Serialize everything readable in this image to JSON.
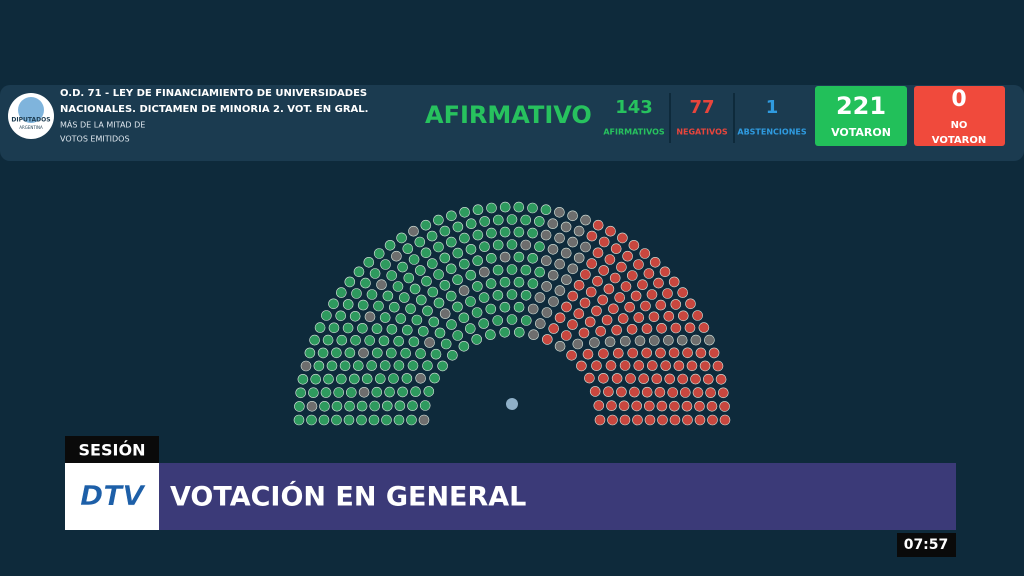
{
  "header": {
    "logo": {
      "line1": "DIPUTADOS",
      "line2": "ARGENTINA"
    },
    "title_lines": [
      "O.D. 71 - LEY DE FINANCIAMIENTO DE UNIVERSIDADES",
      "NACIONALES. DICTAMEN DE MINORIA 2. VOT. EN GRAL."
    ],
    "subtitle_lines": [
      "MÁS DE LA MITAD DE",
      "VOTOS EMITIDOS"
    ],
    "result": "AFIRMATIVO",
    "counts": [
      {
        "value": 143,
        "label": "AFIRMATIVOS"
      },
      {
        "value": 77,
        "label": "NEGATIVOS"
      },
      {
        "value": 1,
        "label": "ABSTENCIONES"
      }
    ],
    "boxes": [
      {
        "value": 221,
        "label": "VOTARON"
      },
      {
        "value": 0,
        "label_lines": [
          "NO",
          "VOTARON"
        ]
      }
    ]
  },
  "lower_third": {
    "tag": "SESIÓN",
    "logo": "DTV",
    "headline": "VOTACIÓN EN GENERAL",
    "clock": "07:57"
  }
}
